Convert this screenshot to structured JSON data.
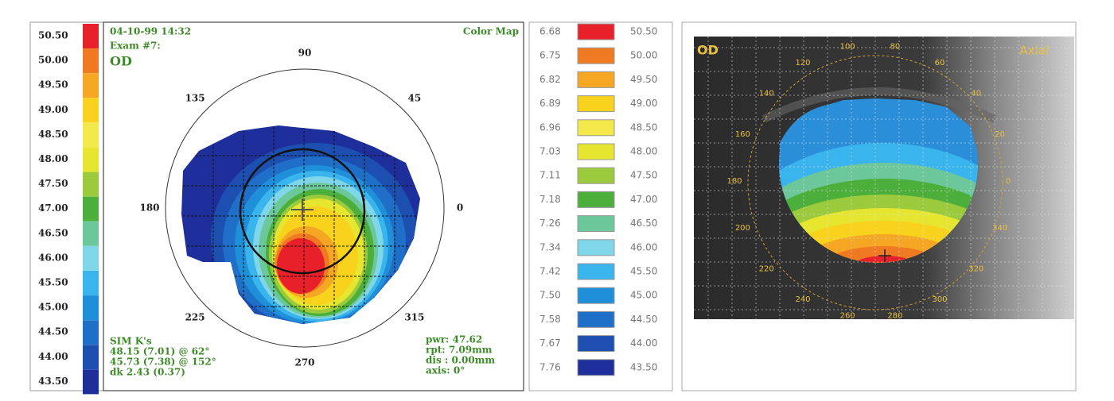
{
  "scale_panel": {
    "labels": [
      "50.50",
      "50.00",
      "49.50",
      "49.00",
      "48.50",
      "48.00",
      "47.50",
      "47.00",
      "46.50",
      "46.00",
      "45.50",
      "45.00",
      "44.50",
      "44.00",
      "43.50"
    ],
    "colors": [
      "#e8202a",
      "#f07a22",
      "#f5a623",
      "#f8d21c",
      "#f5e84a",
      "#e6e630",
      "#9bcb3c",
      "#4caf3c",
      "#6cc79a",
      "#7fd6e8",
      "#3ab4ec",
      "#1e8fd8",
      "#1f6fc8",
      "#1c4fb0",
      "#1e2e9a"
    ]
  },
  "map_panel": {
    "date": "04-10-99 14:32",
    "exam": "Exam #7:",
    "eye": "OD",
    "mode": "Color Map",
    "angles": [
      "90",
      "45",
      "0",
      "315",
      "270",
      "225",
      "180",
      "135"
    ],
    "sim_k": [
      "SIM K's",
      "48.15 (7.01) @ 62°",
      "45.73 (7.38) @ 152°",
      "dk 2.43 (0.37)"
    ],
    "stats": [
      "pwr: 47.62",
      "rpt: 7.09mm",
      "dis : 0.00mm",
      "axis: 0°"
    ]
  },
  "table": {
    "rows": [
      [
        "6.68",
        "50.50"
      ],
      [
        "6.75",
        "50.00"
      ],
      [
        "6.82",
        "49.50"
      ],
      [
        "6.89",
        "49.00"
      ],
      [
        "6.96",
        "48.50"
      ],
      [
        "7.03",
        "48.00"
      ],
      [
        "7.11",
        "47.50"
      ],
      [
        "7.18",
        "47.00"
      ],
      [
        "7.26",
        "46.50"
      ],
      [
        "7.34",
        "46.00"
      ],
      [
        "7.42",
        "45.50"
      ],
      [
        "7.50",
        "45.00"
      ],
      [
        "7.58",
        "44.50"
      ],
      [
        "7.67",
        "44.00"
      ],
      [
        "7.76",
        "43.50"
      ]
    ]
  },
  "photo": {
    "eye": "OD",
    "mode": "Axial",
    "angles": [
      "100",
      "80",
      "60",
      "40",
      "20",
      "0",
      "340",
      "320",
      "300",
      "280",
      "260",
      "240",
      "220",
      "200",
      "180",
      "160",
      "140",
      "120"
    ]
  }
}
